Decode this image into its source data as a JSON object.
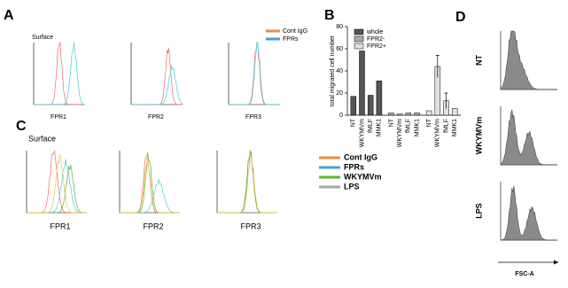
{
  "panel_a": {
    "label": "A",
    "surface": "Surface",
    "legend": [
      {
        "name": "Cont IgG",
        "color": "#f08a3c"
      },
      {
        "name": "FPRs",
        "color": "#4a9fd8"
      }
    ],
    "plots": [
      "FPR1",
      "FPR2",
      "FPR3"
    ]
  },
  "panel_c": {
    "label": "C",
    "surface": "Surface",
    "legend": [
      {
        "name": "Cont IgG",
        "color": "#f08a3c"
      },
      {
        "name": "FPRs",
        "color": "#4a9fd8"
      },
      {
        "name": "WKYMVm",
        "color": "#5bb531"
      },
      {
        "name": "LPS",
        "color": "#a8a8a8"
      }
    ],
    "plots": [
      "FPR1",
      "FPR2",
      "FPR3"
    ]
  },
  "panel_d": {
    "label": "D",
    "rows": [
      "NT",
      "WKYMVm",
      "LPS"
    ],
    "x_label": "FSC-A"
  },
  "chart_data": {
    "type": "bar",
    "panel_label": "B",
    "y_label": "total migrated cell number",
    "categories": [
      "NT",
      "WKYMVm",
      "fMLF",
      "MMK1"
    ],
    "series": [
      {
        "name": "whole",
        "color": "#555555",
        "values": [
          17,
          58,
          18,
          31
        ]
      },
      {
        "name": "FPR2-",
        "color": "#aaaaaa",
        "values": [
          2,
          1,
          2,
          2
        ]
      },
      {
        "name": "FPR2+",
        "color": "#e0e0e0",
        "values": [
          4,
          44,
          13,
          6
        ],
        "errors": [
          null,
          10,
          7,
          null
        ]
      }
    ],
    "ylim": [
      0,
      80
    ],
    "yticks": [
      0,
      20,
      40,
      60,
      80
    ]
  }
}
